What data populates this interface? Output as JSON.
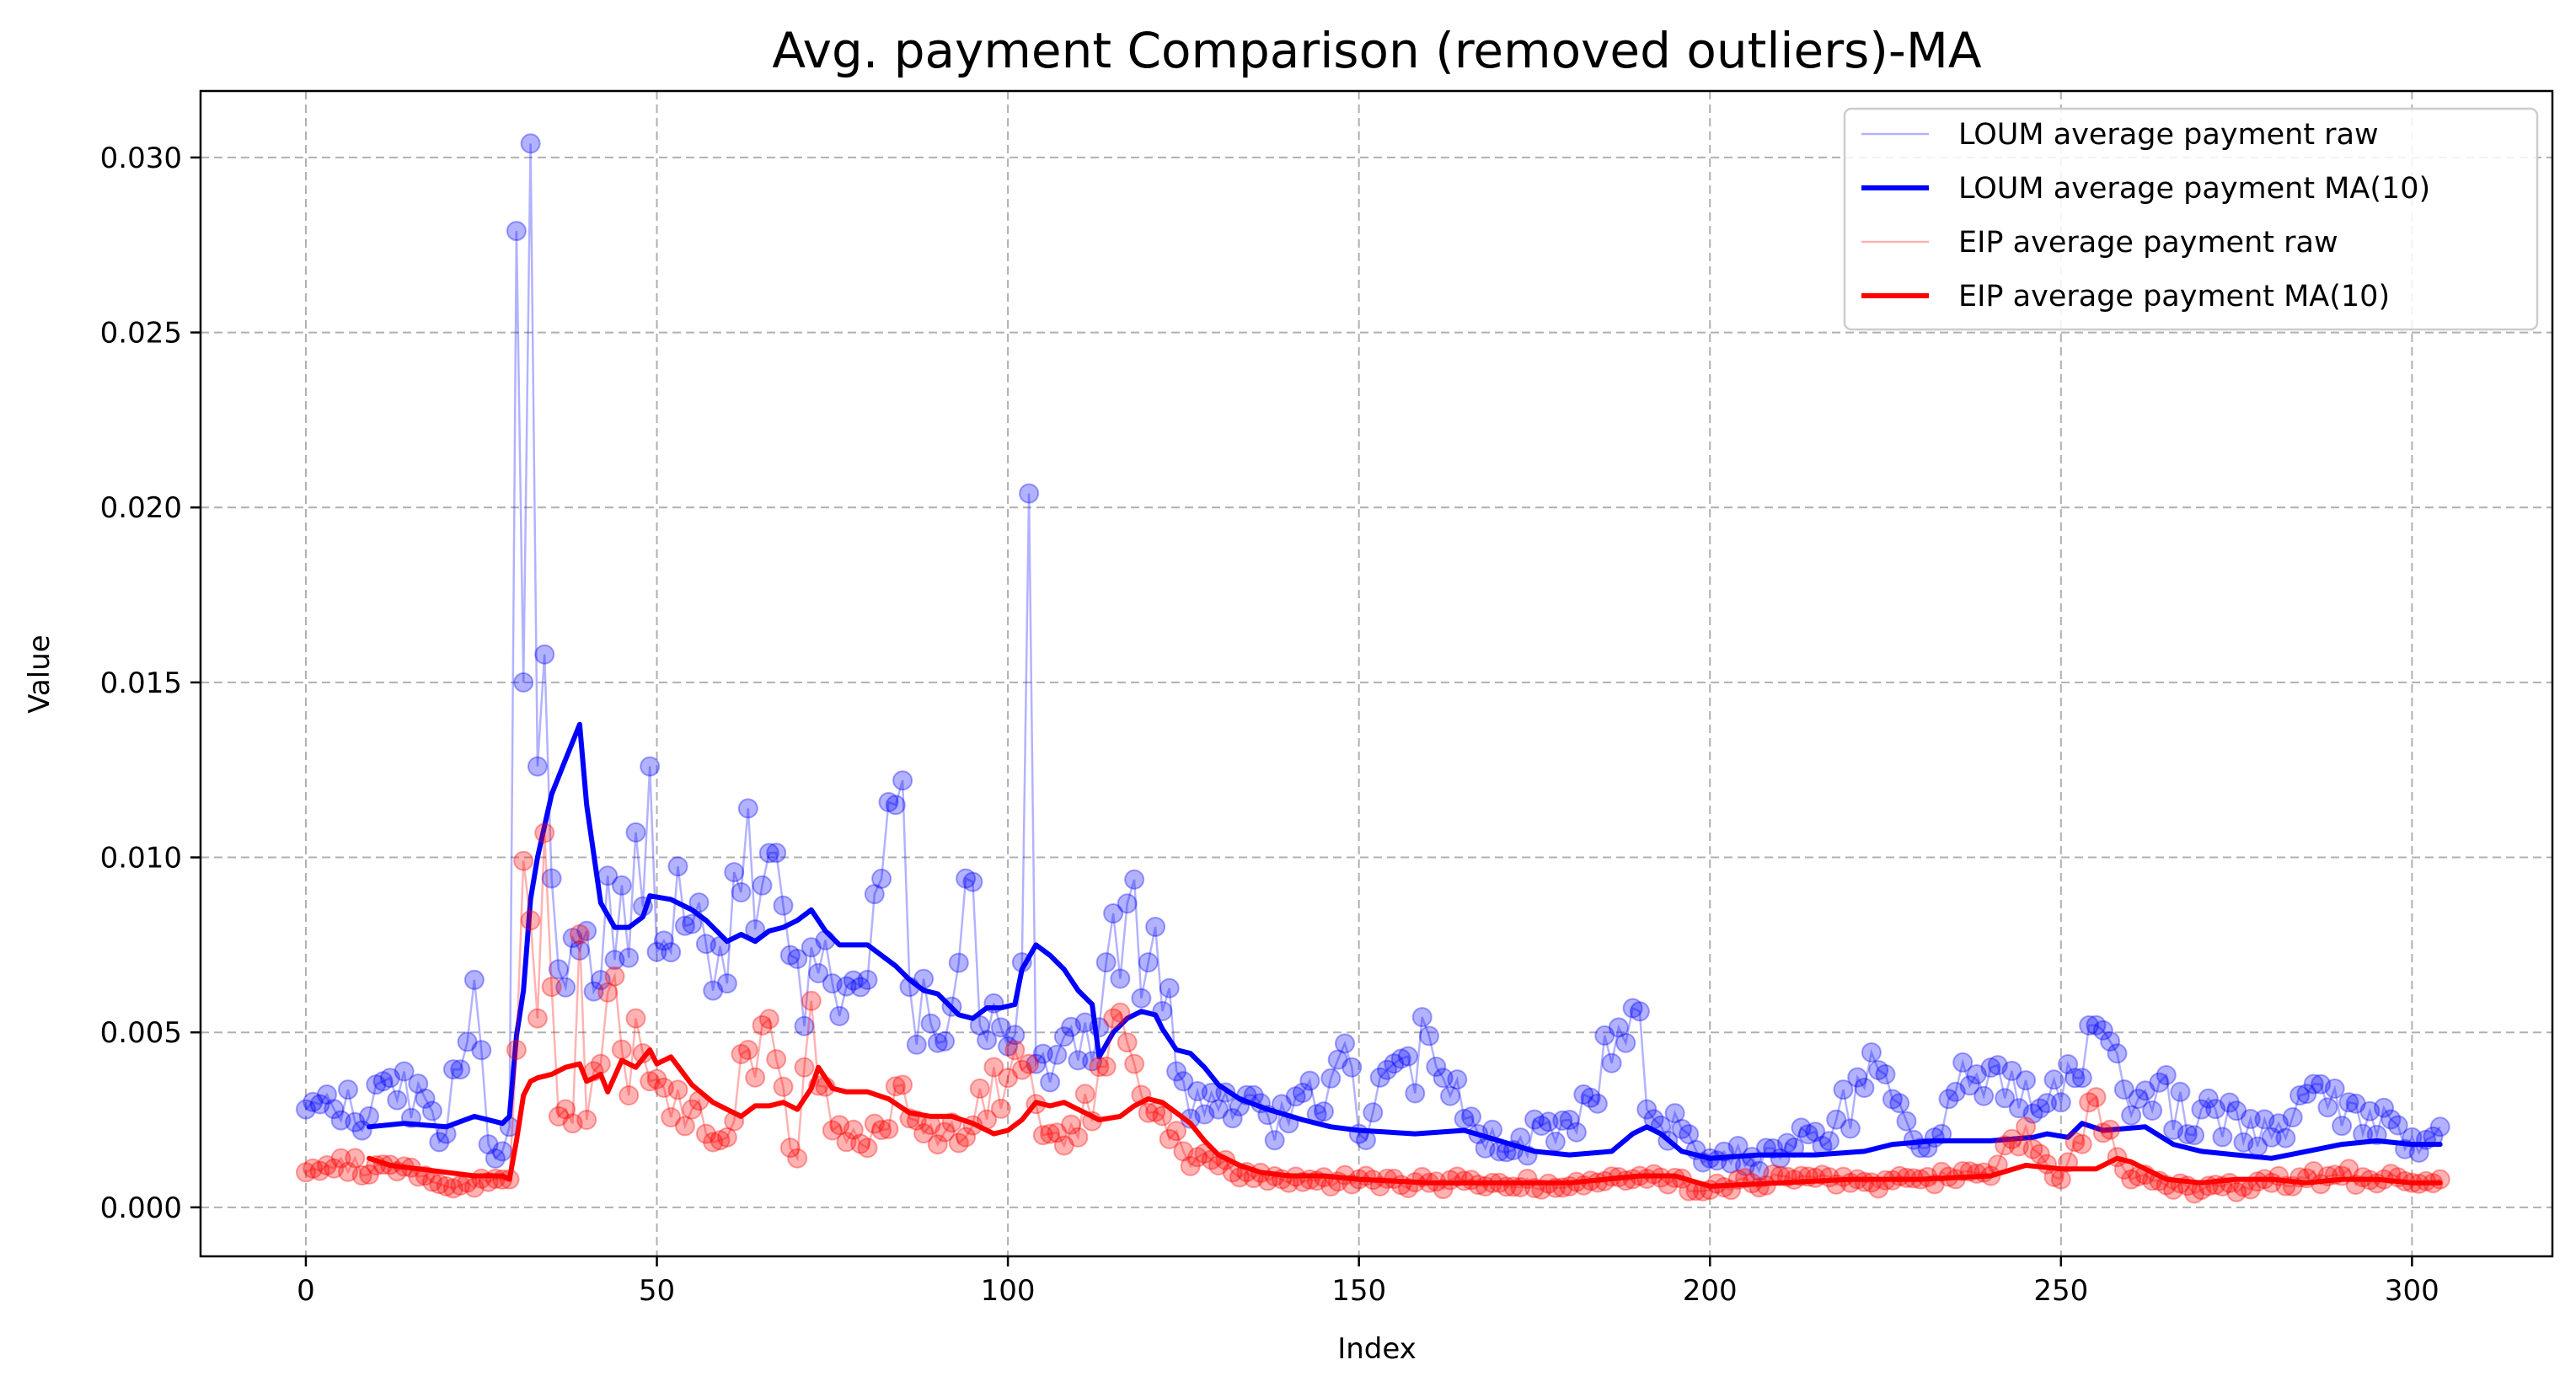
{
  "chart_data": {
    "type": "line",
    "title": "Avg. payment Comparison (removed outliers)-MA",
    "xlabel": "Index",
    "ylabel": "Value",
    "xlim": [
      -15,
      320
    ],
    "ylim": [
      -0.0014,
      0.0319
    ],
    "x_ticks": [
      0,
      50,
      100,
      150,
      200,
      250,
      300
    ],
    "x_tick_labels": [
      "0",
      "50",
      "100",
      "150",
      "200",
      "250",
      "300"
    ],
    "y_ticks": [
      0.0,
      0.005,
      0.01,
      0.015,
      0.02,
      0.025,
      0.03
    ],
    "y_tick_labels": [
      "0.000",
      "0.005",
      "0.010",
      "0.015",
      "0.020",
      "0.025",
      "0.030"
    ],
    "grid": true,
    "legend_position": "top-right",
    "x_range": [
      0,
      304
    ],
    "ma_window": 10,
    "series": [
      {
        "name": "LOUM average payment raw",
        "color": "#0000ff",
        "style": "thin-line-with-markers",
        "anchors_x": [
          0,
          9,
          12,
          20,
          24,
          26,
          28,
          29,
          30,
          31,
          32,
          33,
          34,
          35,
          36,
          38,
          40,
          45,
          48,
          49,
          50,
          55,
          60,
          63,
          65,
          70,
          75,
          80,
          85,
          86,
          90,
          95,
          96,
          100,
          102,
          103,
          104,
          110,
          114,
          115,
          120,
          125,
          130,
          140,
          149,
          150,
          160,
          162,
          170,
          180,
          188,
          190,
          191,
          200,
          210,
          225,
          230,
          235,
          243,
          250,
          254,
          261,
          270,
          280,
          284,
          291,
          300,
          304
        ],
        "anchors_y": [
          0.0028,
          0.0026,
          0.0037,
          0.0021,
          0.0065,
          0.0018,
          0.0016,
          0.0023,
          0.0279,
          0.015,
          0.0304,
          0.0126,
          0.0158,
          0.0094,
          0.0068,
          0.0077,
          0.0079,
          0.0092,
          0.0086,
          0.0126,
          0.0073,
          0.0081,
          0.0064,
          0.0114,
          0.0092,
          0.0071,
          0.0064,
          0.0065,
          0.0122,
          0.0063,
          0.0047,
          0.0093,
          0.0052,
          0.0046,
          0.007,
          0.0204,
          0.0041,
          0.0042,
          0.007,
          0.0084,
          0.007,
          0.0036,
          0.0028,
          0.0024,
          0.004,
          0.0021,
          0.0049,
          0.0037,
          0.0016,
          0.0025,
          0.0047,
          0.0056,
          0.0028,
          0.0014,
          0.0014,
          0.0038,
          0.0017,
          0.0033,
          0.0039,
          0.003,
          0.0052,
          0.0031,
          0.0028,
          0.002,
          0.0032,
          0.003,
          0.002,
          0.0023
        ]
      },
      {
        "name": "LOUM average payment MA(10)",
        "color": "#0000ff",
        "style": "thick-line",
        "x": [
          9,
          14,
          20,
          24,
          28,
          29,
          30,
          31,
          32,
          33,
          35,
          37,
          39,
          40,
          42,
          44,
          46,
          48,
          49,
          52,
          55,
          57,
          60,
          62,
          64,
          66,
          68,
          70,
          72,
          74,
          76,
          78,
          80,
          82,
          84,
          86,
          88,
          90,
          93,
          95,
          97,
          99,
          101,
          102,
          104,
          106,
          108,
          110,
          112,
          113,
          115,
          117,
          119,
          121,
          122,
          124,
          126,
          128,
          130,
          133,
          137,
          142,
          146,
          150,
          158,
          165,
          170,
          175,
          180,
          186,
          189,
          191,
          193,
          196,
          200,
          207,
          215,
          222,
          226,
          232,
          240,
          246,
          248,
          251,
          253,
          256,
          262,
          266,
          270,
          275,
          280,
          285,
          290,
          295,
          300,
          304
        ],
        "y": [
          0.0023,
          0.0024,
          0.0023,
          0.0026,
          0.0024,
          0.0026,
          0.0049,
          0.0062,
          0.0088,
          0.01,
          0.0118,
          0.0128,
          0.0138,
          0.0115,
          0.0087,
          0.008,
          0.008,
          0.0083,
          0.0089,
          0.0088,
          0.0085,
          0.0082,
          0.0076,
          0.0078,
          0.0076,
          0.0079,
          0.008,
          0.0082,
          0.0085,
          0.0079,
          0.0075,
          0.0075,
          0.0075,
          0.0072,
          0.0069,
          0.0065,
          0.0062,
          0.0061,
          0.0055,
          0.0054,
          0.0057,
          0.0057,
          0.0058,
          0.0068,
          0.0075,
          0.0072,
          0.0068,
          0.0062,
          0.0058,
          0.0043,
          0.005,
          0.0054,
          0.0056,
          0.0055,
          0.0051,
          0.0045,
          0.0044,
          0.004,
          0.0035,
          0.0031,
          0.0028,
          0.0025,
          0.0023,
          0.0022,
          0.0021,
          0.0022,
          0.0019,
          0.0016,
          0.0015,
          0.0016,
          0.0021,
          0.0023,
          0.0021,
          0.0016,
          0.0014,
          0.0015,
          0.0015,
          0.0016,
          0.0018,
          0.0019,
          0.0019,
          0.002,
          0.0021,
          0.002,
          0.0024,
          0.0022,
          0.0023,
          0.0018,
          0.0016,
          0.0015,
          0.0014,
          0.0016,
          0.0018,
          0.0019,
          0.0018,
          0.0018
        ]
      },
      {
        "name": "EIP average payment raw",
        "color": "#ff0000",
        "style": "thin-line-with-markers",
        "anchors_x": [
          0,
          10,
          20,
          29,
          30,
          31,
          32,
          33,
          34,
          35,
          36,
          38,
          39,
          40,
          42,
          44,
          46,
          47,
          48,
          49,
          55,
          60,
          63,
          65,
          70,
          72,
          75,
          80,
          85,
          90,
          100,
          103,
          106,
          110,
          115,
          118,
          120,
          125,
          130,
          140,
          150,
          160,
          170,
          180,
          190,
          200,
          210,
          220,
          230,
          240,
          245,
          250,
          254,
          260,
          270,
          280,
          290,
          300,
          304
        ],
        "anchors_y": [
          0.001,
          0.0012,
          0.0006,
          0.0008,
          0.0045,
          0.0099,
          0.0082,
          0.0054,
          0.0107,
          0.0063,
          0.0026,
          0.0024,
          0.0078,
          0.0025,
          0.0041,
          0.0066,
          0.0032,
          0.0054,
          0.0044,
          0.0036,
          0.0028,
          0.002,
          0.0045,
          0.0052,
          0.0014,
          0.0059,
          0.0022,
          0.0017,
          0.0035,
          0.0018,
          0.0037,
          0.0041,
          0.0021,
          0.002,
          0.0054,
          0.0041,
          0.0027,
          0.0016,
          0.0012,
          0.0007,
          0.0008,
          0.0007,
          0.0007,
          0.0006,
          0.0009,
          0.0005,
          0.0009,
          0.0007,
          0.0008,
          0.0009,
          0.0023,
          0.0008,
          0.003,
          0.0008,
          0.0005,
          0.0007,
          0.0009,
          0.0007,
          0.0008
        ]
      },
      {
        "name": "EIP average payment MA(10)",
        "color": "#ff0000",
        "style": "thick-line",
        "x": [
          9,
          12,
          16,
          20,
          24,
          28,
          29,
          30,
          31,
          32,
          33,
          35,
          37,
          39,
          40,
          42,
          43,
          45,
          47,
          49,
          50,
          52,
          55,
          58,
          62,
          64,
          66,
          68,
          70,
          72,
          73,
          75,
          77,
          80,
          83,
          86,
          89,
          92,
          95,
          98,
          100,
          102,
          104,
          106,
          108,
          110,
          113,
          116,
          118,
          120,
          122,
          124,
          126,
          128,
          130,
          133,
          136,
          140,
          145,
          150,
          160,
          170,
          180,
          190,
          195,
          200,
          210,
          220,
          230,
          240,
          245,
          250,
          255,
          258,
          260,
          265,
          270,
          275,
          280,
          285,
          290,
          295,
          300,
          304
        ],
        "y": [
          0.0014,
          0.0012,
          0.0011,
          0.001,
          0.0009,
          0.0009,
          0.0008,
          0.0019,
          0.0032,
          0.0036,
          0.0037,
          0.0038,
          0.004,
          0.0041,
          0.0036,
          0.0038,
          0.0033,
          0.0042,
          0.004,
          0.0045,
          0.0041,
          0.0043,
          0.0035,
          0.003,
          0.0026,
          0.0029,
          0.0029,
          0.003,
          0.0028,
          0.0034,
          0.004,
          0.0034,
          0.0033,
          0.0033,
          0.0031,
          0.0027,
          0.0026,
          0.0026,
          0.0024,
          0.0021,
          0.0022,
          0.0025,
          0.003,
          0.0029,
          0.003,
          0.0028,
          0.0025,
          0.0026,
          0.0029,
          0.0031,
          0.003,
          0.0027,
          0.0024,
          0.0019,
          0.0015,
          0.0012,
          0.001,
          0.0009,
          0.0009,
          0.0008,
          0.0007,
          0.0007,
          0.0007,
          0.0009,
          0.0009,
          0.0006,
          0.0007,
          0.0008,
          0.0008,
          0.0009,
          0.0012,
          0.0011,
          0.0011,
          0.0014,
          0.0013,
          0.0008,
          0.0007,
          0.0008,
          0.0008,
          0.0007,
          0.0008,
          0.0008,
          0.0007,
          0.0007
        ]
      }
    ]
  }
}
